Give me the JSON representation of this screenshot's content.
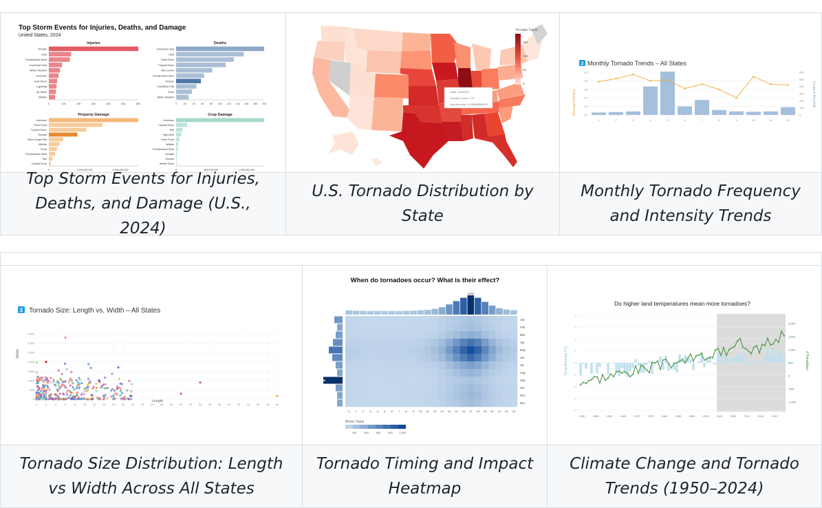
{
  "gallery": {
    "row1_captions": [
      "Top Storm Events for Injuries, Deaths, and Damage (U.S., 2024)",
      "U.S. Tornado Distribution by State",
      "Monthly Tornado Frequency and Intensity Trends"
    ],
    "row2_captions": [
      "Tornado Size Distribution: Length vs Width Across All States",
      "Tornado Timing and Impact Heatmap",
      "Climate Change and Tornado Trends (1950–2024)"
    ]
  },
  "storm_chart": {
    "title": "Top Storm Events for Injuries, Deaths, and Damage",
    "subtitle": "United States, 2024",
    "panels": [
      {
        "label": "Injuries",
        "color": "#e35c63",
        "cats": [
          "Tornado",
          "Heat",
          "Thunderstorm Wind",
          "Excessive Heat",
          "Winter Weather",
          "Hurricane",
          "Dust Storm",
          "Lightning",
          "Ice Storm",
          "Wildfire"
        ],
        "vals": [
          640,
          160,
          150,
          95,
          80,
          70,
          60,
          55,
          50,
          45
        ],
        "ticks": [
          "0",
          "100",
          "200",
          "300",
          "400",
          "500",
          "600"
        ]
      },
      {
        "label": "Deaths",
        "color": "#8ea9c8",
        "cats": [
          "Excessive Heat",
          "Heat",
          "Flash Flood",
          "Tropical Storm",
          "Rip Current",
          "Thunderstorm Wind",
          "Tornado",
          "Cold/Wind Chill",
          "Flood",
          "Winter Weather"
        ],
        "vals": [
          195,
          150,
          128,
          110,
          80,
          62,
          55,
          45,
          35,
          28
        ],
        "ticks": [
          "0",
          "20",
          "40",
          "60",
          "80",
          "100",
          "120",
          "140",
          "160",
          "180",
          "200"
        ]
      },
      {
        "label": "Property Damage",
        "color": "#f4b97a",
        "cats": [
          "Hurricane",
          "Flash Flood",
          "Tropical Storm",
          "Tornado",
          "Storm Surge/Tide",
          "Wildfire",
          "Flood",
          "Thunderstorm Wind",
          "Hail",
          "Coastal Flood"
        ],
        "vals": [
          5000000000,
          3000000000,
          2100000000,
          1600000000,
          800000000,
          600000000,
          450000000,
          350000000,
          200000000,
          100000000
        ],
        "ticks": [
          "0",
          "2,000,000,000",
          "4,000,000,000"
        ]
      },
      {
        "label": "Crop Damage",
        "color": "#a7d7cc",
        "cats": [
          "Hurricane",
          "Tropical Storm",
          "Hail",
          "High Wind",
          "Flash Flood",
          "Wildfire",
          "Thunderstorm Wind",
          "Drought",
          "Tornado",
          "Winter Storm"
        ],
        "vals": [
          1600000000,
          200000000,
          120000000,
          90000000,
          60000000,
          40000000,
          30000000,
          20000000,
          15000000,
          10000000
        ],
        "ticks": [
          "0",
          "800,000,000",
          "1,600,000,000"
        ]
      }
    ]
  },
  "map_chart": {
    "legend_title": "Tornado Count",
    "legend_ticks": [
      "150",
      "100",
      "50",
      "0"
    ],
    "tooltip": [
      "State: ILLINOIS",
      "Tornado Count: 175",
      "Avg Intensity: 0.434685869832"
    ]
  },
  "monthly_chart": {
    "badge": "2",
    "title": "Monthly Tornado Trends – All States",
    "y_left_label": "Average Intensity",
    "y_right_label": "Count of Records",
    "months": [
      "1",
      "2",
      "3",
      "4",
      "5",
      "6",
      "7",
      "8",
      "9",
      "10",
      "11",
      "12"
    ],
    "counts": [
      35,
      40,
      50,
      400,
      610,
      120,
      210,
      70,
      50,
      45,
      50,
      110
    ],
    "intensity": [
      0.78,
      0.85,
      0.95,
      0.8,
      0.82,
      0.62,
      0.72,
      0.6,
      0.4,
      0.9,
      0.72,
      0.7
    ],
    "left_ticks": [
      "1.0",
      "0.8",
      "0.6",
      "0.4",
      "0.2",
      "0.0"
    ],
    "right_ticks": [
      "600",
      "500",
      "400",
      "300",
      "200",
      "100",
      "0"
    ],
    "line_color": "#f2a93b",
    "bar_color": "#a4c0dc"
  },
  "size_chart": {
    "badge": "3",
    "title": "Tornado Size: Length vs. Width – All States",
    "xlabel": "Length",
    "ylabel": "Width",
    "x_ticks": [
      "0",
      "2",
      "4",
      "6",
      "8",
      "10",
      "12",
      "14",
      "16",
      "18",
      "20",
      "22",
      "24",
      "26",
      "28",
      "30",
      "32",
      "34",
      "36",
      "38",
      "40",
      "42",
      "44",
      "46",
      "48",
      "50"
    ],
    "y_ticks": [
      "3,500",
      "3,000",
      "2,500",
      "2,000",
      "1,500",
      "1,000",
      "500",
      "0"
    ]
  },
  "heat_chart": {
    "title": "When do tornadoes occur? What is their effect?",
    "peak_label": "4165",
    "side_label": "7898",
    "months": [
      "Jan",
      "Feb",
      "Mar",
      "Apr",
      "May",
      "Jun",
      "Jul",
      "Aug",
      "Sep",
      "Oct",
      "Nov",
      "Dec"
    ],
    "hours": [
      "0",
      "1",
      "2",
      "3",
      "4",
      "5",
      "6",
      "7",
      "8",
      "9",
      "10",
      "11",
      "12",
      "13",
      "14",
      "15",
      "16",
      "17",
      "18",
      "19",
      "20",
      "21",
      "22",
      "23"
    ],
    "legend_title": "Metric Value",
    "legend_ticks": [
      "200",
      "400",
      "600",
      "800",
      "1,000"
    ]
  },
  "climate_chart": {
    "title": "Do higher land temperatures mean more tornadoes?",
    "left_label": "Temp Anomaly (°C)",
    "right_label": "# Tornadoes",
    "years": [
      "1950",
      "1955",
      "1960",
      "1965",
      "1970",
      "1975",
      "1980",
      "1985",
      "1990",
      "1995",
      "2000",
      "2005",
      "2010",
      "2015",
      "2020"
    ],
    "left_ticks": [
      "4",
      "3",
      "2",
      "1",
      "0",
      "-1",
      "-2",
      "-3",
      "-4"
    ],
    "right_ticks": [
      "2,000",
      "1,500",
      "1,000",
      "500",
      "0",
      "-500",
      "-1,000"
    ]
  }
}
